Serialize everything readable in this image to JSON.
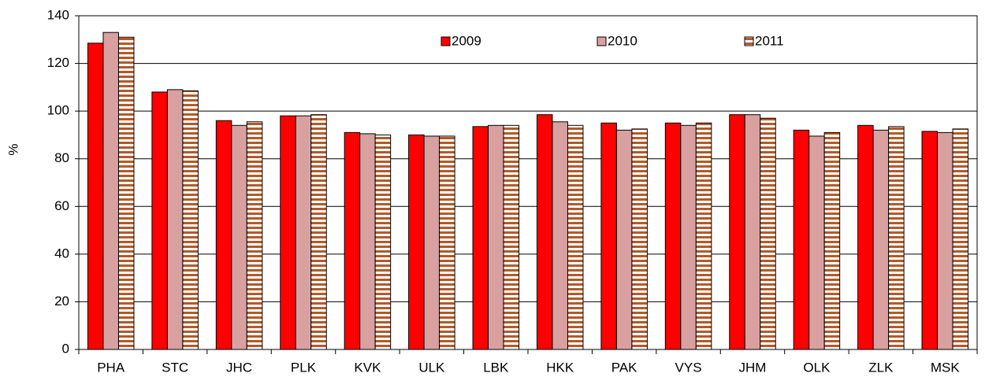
{
  "chart_data": {
    "type": "bar",
    "y_label": "%",
    "categories": [
      "PHA",
      "STC",
      "JHC",
      "PLK",
      "KVK",
      "ULK",
      "LBK",
      "HKK",
      "PAK",
      "VYS",
      "JHM",
      "OLK",
      "ZLK",
      "MSK"
    ],
    "series": [
      {
        "name": "2009",
        "color": "#ff0000",
        "values": [
          128.5,
          108,
          96,
          98,
          91,
          90,
          93.5,
          98.5,
          95,
          95,
          98.5,
          92,
          94,
          91.5
        ]
      },
      {
        "name": "2010",
        "color": "#d9a0a0",
        "values": [
          133,
          109,
          94,
          98,
          90.5,
          89.5,
          94,
          95.5,
          92,
          94,
          98.5,
          89.5,
          92,
          91
        ]
      },
      {
        "name": "2011",
        "color": "#b35a28",
        "pattern": "horizontal-stripes",
        "values": [
          131,
          108.5,
          95.5,
          98.5,
          90,
          89.5,
          94,
          94,
          92.5,
          95,
          97,
          91,
          93.5,
          92.5
        ]
      }
    ],
    "ylim": [
      0,
      140
    ],
    "yticks": [
      0,
      20,
      40,
      60,
      80,
      100,
      120,
      140
    ],
    "grid": true,
    "legend": "top"
  }
}
